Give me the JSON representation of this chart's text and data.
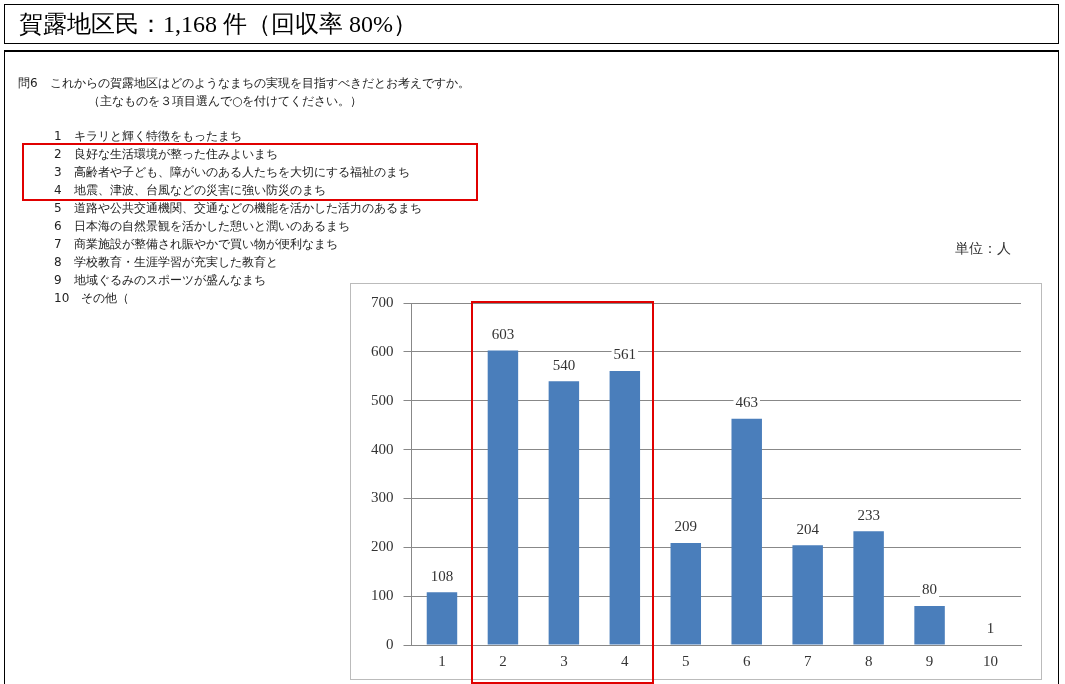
{
  "chart_data": {
    "type": "bar",
    "title": "賀露地区民：1,168 件（回収率 80%）",
    "annotations": [
      "問6　これからの賀露地区はどのようなまちの実現を目指すべきだとお考えですか。",
      "（主なものを３項目選んで○を付けてください。）",
      "1　キラリと輝く特徴をもったまち",
      "2　良好な生活環境が整った住みよいまち",
      "3　高齢者や子ども、障がいのある人たちを大切にする福祉のまち",
      "4　地震、津波、台風などの災害に強い防災のまち",
      "5　道路や公共交通機関、交通などの機能を活かした活力のあるまち",
      "6　日本海の自然景観を活かした憩いと潤いのあるまち",
      "7　商業施設が整備され賑やかで買い物が便利なまち",
      "8　学校教育・生涯学習が充実した教育と",
      "9　地域ぐるみのスポーツが盛んなまち",
      "10　その他（",
      "単位：人"
    ],
    "categories": [
      "1",
      "2",
      "3",
      "4",
      "5",
      "6",
      "7",
      "8",
      "9",
      "10"
    ],
    "values": [
      108,
      603,
      540,
      561,
      209,
      463,
      204,
      233,
      80,
      1
    ],
    "color": "#4a7ebb",
    "ylim": [
      0,
      700
    ],
    "yticks": [
      0,
      100,
      200,
      300,
      400,
      500,
      600,
      700
    ],
    "grid": "y",
    "data_labels": true,
    "legend": false
  }
}
